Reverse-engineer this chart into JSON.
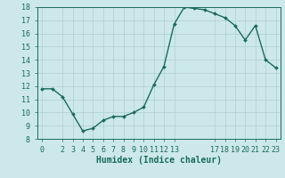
{
  "x": [
    0,
    1,
    2,
    3,
    4,
    5,
    6,
    7,
    8,
    9,
    10,
    11,
    12,
    13,
    14,
    15,
    16,
    17,
    18,
    19,
    20,
    21,
    22,
    23
  ],
  "y": [
    11.8,
    11.8,
    11.2,
    9.9,
    8.6,
    8.8,
    9.4,
    9.7,
    9.7,
    10.0,
    10.4,
    12.1,
    13.5,
    16.7,
    18.0,
    17.9,
    17.8,
    17.5,
    17.2,
    16.6,
    15.5,
    16.6,
    14.0,
    13.4
  ],
  "line_color": "#1a6b5a",
  "marker": "D",
  "marker_size": 2.0,
  "bg_color": "#cce8ea",
  "grid_color": "#b0ced2",
  "xlabel": "Humidex (Indice chaleur)",
  "ylim": [
    8,
    18
  ],
  "xlim": [
    -0.5,
    23.5
  ],
  "yticks": [
    8,
    9,
    10,
    11,
    12,
    13,
    14,
    15,
    16,
    17,
    18
  ],
  "xticks": [
    0,
    2,
    3,
    4,
    5,
    6,
    7,
    8,
    9,
    10,
    11,
    12,
    13,
    17,
    18,
    19,
    20,
    21,
    22,
    23
  ],
  "tick_color": "#1a6b5a",
  "label_fontsize": 7.0,
  "tick_fontsize": 6.0,
  "linewidth": 1.0
}
